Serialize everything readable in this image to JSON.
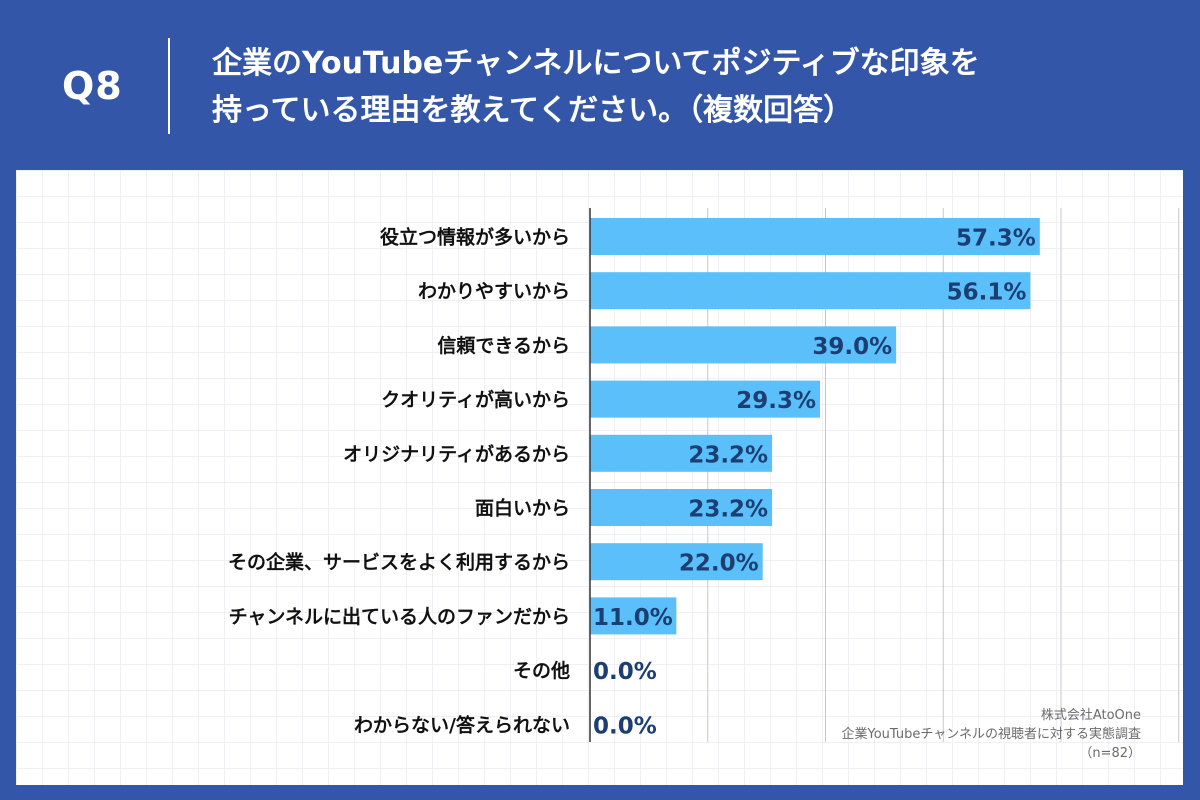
{
  "header": {
    "question_label": "Q8",
    "title_line1": "企業のYouTubeチャンネルについてポジティブな印象を",
    "title_line2": "持っている理由を教えてください。（複数回答）"
  },
  "source": {
    "company": "株式会社AtoOne",
    "survey": "企業YouTubeチャンネルの視聴者に対する実態調査",
    "sample": "（n=82）"
  },
  "colors": {
    "background": "#3356a8",
    "bar": "#5bbffa",
    "value_text": "#1b3e73",
    "category_text": "#111111",
    "grid": "#c8c8c8"
  },
  "chart_data": {
    "type": "bar",
    "orientation": "horizontal",
    "categories": [
      "役立つ情報が多いから",
      "わかりやすいから",
      "信頼できるから",
      "クオリティが高いから",
      "オリジナリティがあるから",
      "面白いから",
      "その企業、サービスをよく利用するから",
      "チャンネルに出ている人のファンだから",
      "その他",
      "わからない/答えられない"
    ],
    "values": [
      57.3,
      56.1,
      39.0,
      29.3,
      23.2,
      23.2,
      22.0,
      11.0,
      0.0,
      0.0
    ],
    "value_labels": [
      "57.3%",
      "56.1%",
      "39.0%",
      "29.3%",
      "23.2%",
      "23.2%",
      "22.0%",
      "11.0%",
      "0.0%",
      "0.0%"
    ],
    "xlim": [
      0,
      75
    ],
    "grid_x": [
      0,
      15,
      30,
      45,
      60,
      75
    ],
    "title": "",
    "xlabel": "",
    "ylabel": ""
  }
}
